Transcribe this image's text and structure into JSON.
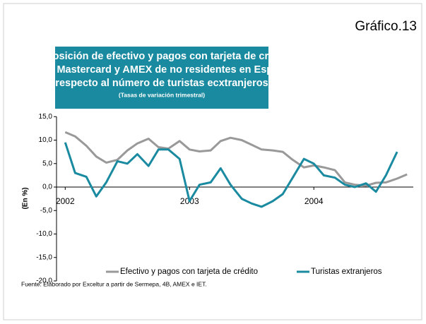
{
  "chart_data": {
    "type": "line",
    "figure_label": "Gráfico.13",
    "title": [
      "Disposición de efectivo y pagos con tarjeta de crédito",
      "Visa Mastercard y AMEX de no residentes en España",
      "respecto al número de turistas ecxtranjeros"
    ],
    "subtitle": "(Tasas de variación trimestral)",
    "y_label": "(En %)",
    "source": "Fuente: Elaborado por Exceltur a partir de Sermepa, 4B,  AMEX e IET.",
    "x": [
      2002.0,
      2002.08,
      2002.17,
      2002.25,
      2002.33,
      2002.42,
      2002.5,
      2002.58,
      2002.67,
      2002.75,
      2002.83,
      2002.92,
      2003.0,
      2003.08,
      2003.17,
      2003.25,
      2003.33,
      2003.42,
      2003.5,
      2003.58,
      2003.67,
      2003.75,
      2003.83,
      2003.92,
      2004.0,
      2004.08,
      2004.17,
      2004.25,
      2004.33,
      2004.42,
      2004.5,
      2004.58,
      2004.67,
      2004.75
    ],
    "series": [
      {
        "name": "Efectivo y pagos con tarjeta de crédito",
        "color": "#999999",
        "values": [
          11.7,
          10.8,
          8.8,
          6.5,
          5.2,
          5.8,
          7.8,
          9.3,
          10.3,
          8.5,
          8.2,
          9.8,
          8.0,
          7.6,
          7.8,
          9.8,
          10.5,
          10.0,
          9.0,
          8.0,
          7.8,
          7.5,
          5.8,
          4.2,
          4.6,
          4.2,
          3.6,
          1.0,
          0.5,
          0.3,
          0.9,
          1.0,
          1.8,
          2.7
        ]
      },
      {
        "name": "Turistas extranjeros",
        "color": "#1a8aa0",
        "values": [
          9.5,
          3.0,
          2.2,
          -2.0,
          1.0,
          5.5,
          5.0,
          7.0,
          4.5,
          8.0,
          8.0,
          6.0,
          -3.0,
          0.5,
          1.0,
          4.0,
          0.5,
          -2.5,
          -3.5,
          -4.2,
          -3.0,
          -1.5,
          2.0,
          6.0,
          5.0,
          2.5,
          2.0,
          0.5,
          0.0,
          0.8,
          -1.0,
          2.5,
          7.5,
          null
        ]
      }
    ],
    "xlim": [
      2001.93,
      2004.8
    ],
    "xticks": [
      2002,
      2003,
      2004
    ],
    "ylim": [
      -20,
      15
    ],
    "yticks": [
      {
        "value": -20,
        "label": "-20,0"
      },
      {
        "value": -15,
        "label": "-15,0"
      },
      {
        "value": -10,
        "label": "-10,0"
      },
      {
        "value": -5,
        "label": "-5,0"
      },
      {
        "value": 0,
        "label": "0,0"
      },
      {
        "value": 5,
        "label": "5,0"
      },
      {
        "value": 10,
        "label": "10,0"
      },
      {
        "value": 15,
        "label": "15,0"
      }
    ],
    "title_box_color": "#1a8aa0"
  }
}
